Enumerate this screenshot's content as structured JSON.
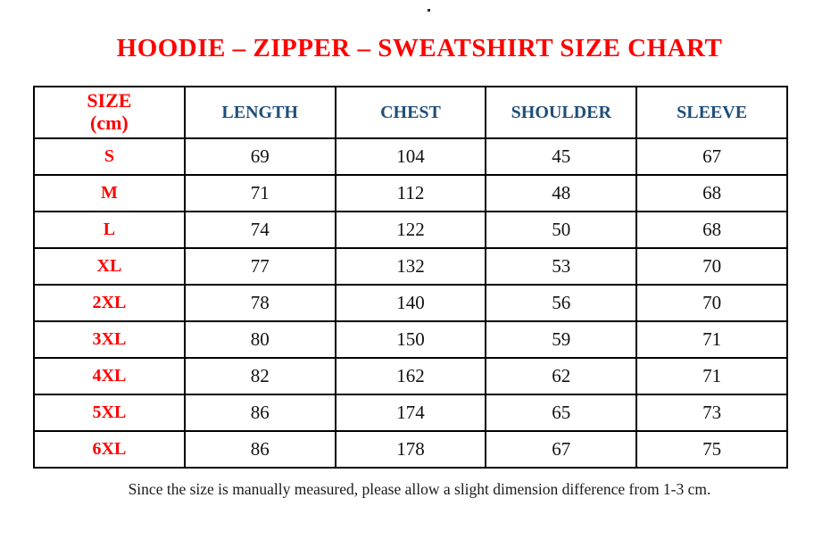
{
  "page": {
    "top_dot": ".",
    "title": "HOODIE – ZIPPER – SWEATSHIRT SIZE CHART",
    "footnote": "Since the size is manually measured, please allow a slight dimension difference from 1-3 cm."
  },
  "colors": {
    "title_red": "#ff0000",
    "size_label_red": "#ff0000",
    "header_blue": "#1f4e79",
    "value_black": "#111111",
    "border_black": "#000000",
    "background": "#ffffff"
  },
  "table": {
    "header": {
      "size_line1": "SIZE",
      "size_line2": "(cm)",
      "cols": [
        "LENGTH",
        "CHEST",
        "SHOULDER",
        "SLEEVE"
      ]
    },
    "rows": [
      {
        "size": "S",
        "length": "69",
        "chest": "104",
        "shoulder": "45",
        "sleeve": "67"
      },
      {
        "size": "M",
        "length": "71",
        "chest": "112",
        "shoulder": "48",
        "sleeve": "68"
      },
      {
        "size": "L",
        "length": "74",
        "chest": "122",
        "shoulder": "50",
        "sleeve": "68"
      },
      {
        "size": "XL",
        "length": "77",
        "chest": "132",
        "shoulder": "53",
        "sleeve": "70"
      },
      {
        "size": "2XL",
        "length": "78",
        "chest": "140",
        "shoulder": "56",
        "sleeve": "70"
      },
      {
        "size": "3XL",
        "length": "80",
        "chest": "150",
        "shoulder": "59",
        "sleeve": "71"
      },
      {
        "size": "4XL",
        "length": "82",
        "chest": "162",
        "shoulder": "62",
        "sleeve": "71"
      },
      {
        "size": "5XL",
        "length": "86",
        "chest": "174",
        "shoulder": "65",
        "sleeve": "73"
      },
      {
        "size": "6XL",
        "length": "86",
        "chest": "178",
        "shoulder": "67",
        "sleeve": "75"
      }
    ]
  },
  "chart_data": {
    "type": "table",
    "title": "HOODIE – ZIPPER – SWEATSHIRT SIZE CHART",
    "columns": [
      "SIZE (cm)",
      "LENGTH",
      "CHEST",
      "SHOULDER",
      "SLEEVE"
    ],
    "rows": [
      [
        "S",
        69,
        104,
        45,
        67
      ],
      [
        "M",
        71,
        112,
        48,
        68
      ],
      [
        "L",
        74,
        122,
        50,
        68
      ],
      [
        "XL",
        77,
        132,
        53,
        70
      ],
      [
        "2XL",
        78,
        140,
        56,
        70
      ],
      [
        "3XL",
        80,
        150,
        59,
        71
      ],
      [
        "4XL",
        82,
        162,
        62,
        71
      ],
      [
        "5XL",
        86,
        174,
        65,
        73
      ],
      [
        "6XL",
        86,
        178,
        67,
        75
      ]
    ],
    "note": "Since the size is manually measured, please allow a slight dimension difference from 1-3 cm."
  }
}
